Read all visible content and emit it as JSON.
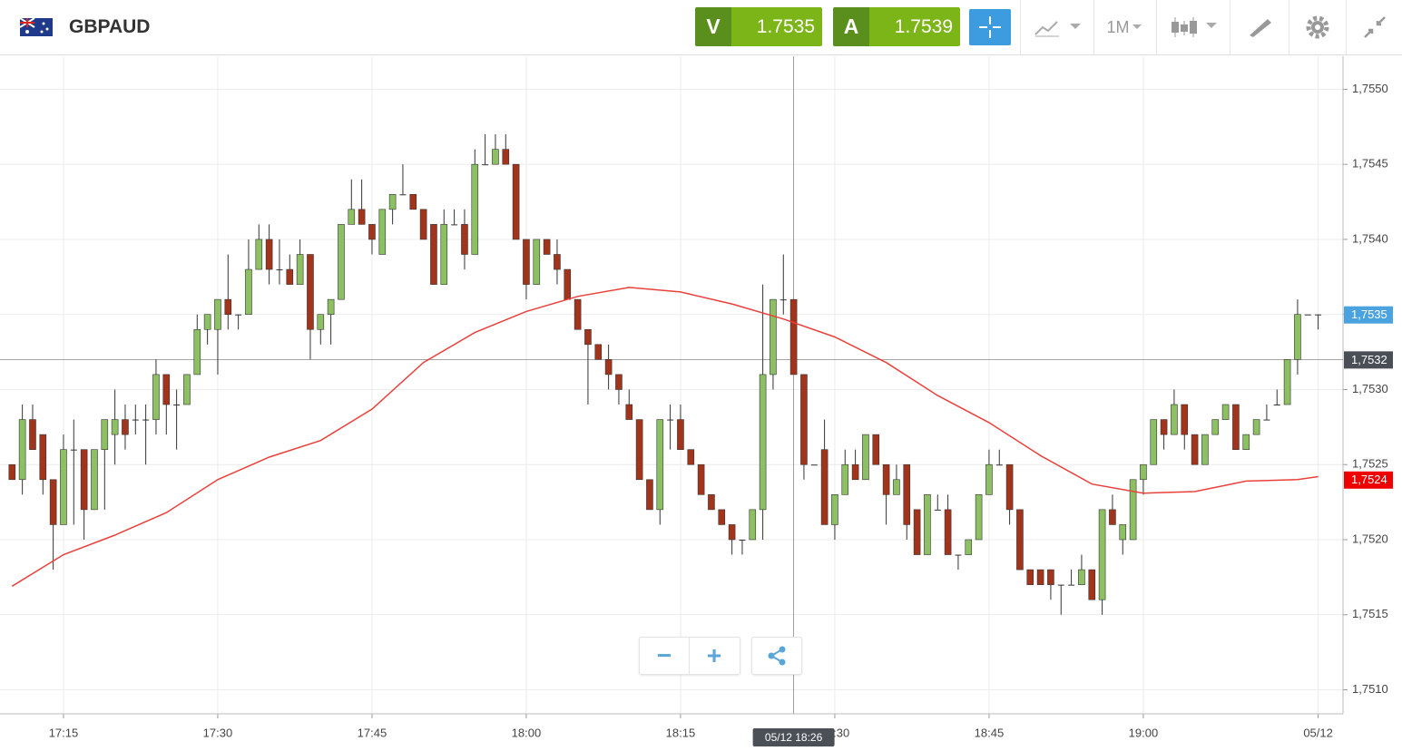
{
  "header": {
    "symbol": "GBPAUD",
    "sell": {
      "label": "V",
      "price": 1.7535
    },
    "buy": {
      "label": "A",
      "price": 1.7539
    },
    "timeframe": "1M"
  },
  "chart_data": {
    "type": "candlestick",
    "x": [
      "17:10",
      "17:11",
      "17:12",
      "17:13",
      "17:14",
      "17:15",
      "17:16",
      "17:17",
      "17:18",
      "17:19",
      "17:20",
      "17:21",
      "17:22",
      "17:23",
      "17:24",
      "17:25",
      "17:26",
      "17:27",
      "17:28",
      "17:29",
      "17:30",
      "17:31",
      "17:32",
      "17:33",
      "17:34",
      "17:35",
      "17:36",
      "17:37",
      "17:38",
      "17:39",
      "17:40",
      "17:41",
      "17:42",
      "17:43",
      "17:44",
      "17:45",
      "17:46",
      "17:47",
      "17:48",
      "17:49",
      "17:50",
      "17:51",
      "17:52",
      "17:53",
      "17:54",
      "17:55",
      "17:56",
      "17:57",
      "17:58",
      "17:59",
      "18:00",
      "18:01",
      "18:02",
      "18:03",
      "18:04",
      "18:05",
      "18:06",
      "18:07",
      "18:08",
      "18:09",
      "18:10",
      "18:11",
      "18:12",
      "18:13",
      "18:14",
      "18:15",
      "18:16",
      "18:17",
      "18:18",
      "18:19",
      "18:20",
      "18:21",
      "18:22",
      "18:23",
      "18:24",
      "18:25",
      "18:26",
      "18:27",
      "18:28",
      "18:29",
      "18:30",
      "18:31",
      "18:32",
      "18:33",
      "18:34",
      "18:35",
      "18:36",
      "18:37",
      "18:38",
      "18:39",
      "18:40",
      "18:41",
      "18:42",
      "18:43",
      "18:44",
      "18:45",
      "18:46",
      "18:47",
      "18:48",
      "18:49",
      "18:50",
      "18:51",
      "18:52",
      "18:53",
      "18:54",
      "18:55",
      "18:56",
      "18:57",
      "18:58",
      "18:59",
      "19:00",
      "19:01",
      "19:02",
      "19:03",
      "19:04",
      "19:05",
      "19:06",
      "19:07",
      "19:08",
      "19:09",
      "19:10",
      "19:11",
      "19:12",
      "19:13",
      "19:14",
      "19:15",
      "19:16",
      "19:17"
    ],
    "open": [
      1.7525,
      1.7524,
      1.7528,
      1.7527,
      1.7524,
      1.7521,
      1.7526,
      1.7526,
      1.7522,
      1.7526,
      1.7527,
      1.7528,
      1.7528,
      1.7528,
      1.7528,
      1.7531,
      1.7529,
      1.7529,
      1.7531,
      1.7534,
      1.7534,
      1.7536,
      1.7535,
      1.7535,
      1.7538,
      1.754,
      1.7538,
      1.7538,
      1.7537,
      1.7539,
      1.7534,
      1.7535,
      1.7536,
      1.7541,
      1.7542,
      1.7541,
      1.7539,
      1.7542,
      1.7543,
      1.7543,
      1.7542,
      1.7541,
      1.7537,
      1.7541,
      1.7541,
      1.7539,
      1.7545,
      1.7545,
      1.7546,
      1.7545,
      1.754,
      1.7537,
      1.754,
      1.7539,
      1.7538,
      1.7536,
      1.7534,
      1.7533,
      1.7532,
      1.7531,
      1.7529,
      1.7528,
      1.7524,
      1.7522,
      1.7528,
      1.7528,
      1.7526,
      1.7525,
      1.7523,
      1.7522,
      1.7521,
      1.752,
      1.752,
      1.7522,
      1.7531,
      1.7536,
      1.7536,
      1.7531,
      1.7525,
      1.7526,
      1.7521,
      1.7523,
      1.7525,
      1.7524,
      1.7527,
      1.7525,
      1.7523,
      1.7525,
      1.7522,
      1.7519,
      1.7522,
      1.7522,
      1.7519,
      1.7519,
      1.752,
      1.7523,
      1.7525,
      1.7525,
      1.7522,
      1.7518,
      1.7518,
      1.7518,
      1.7517,
      1.7517,
      1.7517,
      1.7518,
      1.7516,
      1.7522,
      1.752,
      1.752,
      1.7524,
      1.7525,
      1.7528,
      1.7527,
      1.7529,
      1.7527,
      1.7525,
      1.7527,
      1.7528,
      1.7529,
      1.7526,
      1.7527,
      1.7528,
      1.7529,
      1.7529,
      1.7532,
      1.7535,
      1.7535
    ],
    "high": [
      1.7525,
      1.7529,
      1.7529,
      1.7527,
      1.7524,
      1.7527,
      1.7528,
      1.7526,
      1.7526,
      1.7528,
      1.753,
      1.7529,
      1.7529,
      1.7529,
      1.7532,
      1.7531,
      1.753,
      1.7531,
      1.7535,
      1.7535,
      1.7536,
      1.7539,
      1.7535,
      1.754,
      1.7541,
      1.7541,
      1.754,
      1.7539,
      1.754,
      1.7539,
      1.7535,
      1.7536,
      1.7541,
      1.7544,
      1.7544,
      1.7541,
      1.7542,
      1.7543,
      1.7545,
      1.7543,
      1.7542,
      1.7541,
      1.7542,
      1.7542,
      1.7542,
      1.7546,
      1.7547,
      1.7547,
      1.7547,
      1.7545,
      1.754,
      1.754,
      1.754,
      1.754,
      1.7538,
      1.7536,
      1.7534,
      1.7533,
      1.7533,
      1.7531,
      1.753,
      1.7528,
      1.7524,
      1.7528,
      1.7529,
      1.7529,
      1.7526,
      1.7525,
      1.7523,
      1.7522,
      1.7521,
      1.752,
      1.7522,
      1.7537,
      1.7536,
      1.7539,
      1.7536,
      1.7531,
      1.7525,
      1.7528,
      1.7523,
      1.7526,
      1.7526,
      1.7527,
      1.7527,
      1.7525,
      1.7525,
      1.7525,
      1.7522,
      1.7523,
      1.7523,
      1.7523,
      1.7519,
      1.752,
      1.7523,
      1.7526,
      1.7526,
      1.7525,
      1.7522,
      1.7518,
      1.7518,
      1.7518,
      1.7517,
      1.7518,
      1.7519,
      1.7518,
      1.7522,
      1.7523,
      1.7521,
      1.7524,
      1.7525,
      1.7528,
      1.7528,
      1.753,
      1.7529,
      1.7527,
      1.7527,
      1.7528,
      1.7529,
      1.7529,
      1.7527,
      1.7528,
      1.7529,
      1.753,
      1.7532,
      1.7536,
      1.7535,
      1.7535
    ],
    "low": [
      1.7524,
      1.7523,
      1.7526,
      1.7523,
      1.7518,
      1.7521,
      1.7521,
      1.752,
      1.7522,
      1.7522,
      1.7525,
      1.7526,
      1.7527,
      1.7525,
      1.7527,
      1.7527,
      1.7526,
      1.7529,
      1.7531,
      1.7533,
      1.7531,
      1.7534,
      1.7534,
      1.7535,
      1.7538,
      1.7537,
      1.7537,
      1.7537,
      1.7537,
      1.7532,
      1.7533,
      1.7533,
      1.7536,
      1.7541,
      1.7541,
      1.7539,
      1.7539,
      1.7541,
      1.7543,
      1.7542,
      1.754,
      1.7537,
      1.7537,
      1.7541,
      1.7538,
      1.7539,
      1.7545,
      1.7545,
      1.7545,
      1.754,
      1.7536,
      1.7537,
      1.7539,
      1.7537,
      1.7536,
      1.7534,
      1.7529,
      1.7532,
      1.753,
      1.7529,
      1.7528,
      1.7524,
      1.7522,
      1.7521,
      1.7526,
      1.7526,
      1.7525,
      1.7523,
      1.7522,
      1.7521,
      1.7519,
      1.7519,
      1.752,
      1.752,
      1.753,
      1.7535,
      1.7531,
      1.7524,
      1.7525,
      1.7521,
      1.752,
      1.7523,
      1.7524,
      1.7524,
      1.7525,
      1.7521,
      1.7523,
      1.752,
      1.7519,
      1.7519,
      1.7522,
      1.7519,
      1.7518,
      1.7519,
      1.752,
      1.7523,
      1.7525,
      1.7521,
      1.7518,
      1.7517,
      1.7517,
      1.7516,
      1.7515,
      1.7517,
      1.7517,
      1.7516,
      1.7515,
      1.7521,
      1.7519,
      1.752,
      1.7523,
      1.7525,
      1.7526,
      1.7527,
      1.7526,
      1.7525,
      1.7525,
      1.7527,
      1.7528,
      1.7526,
      1.7526,
      1.7527,
      1.7528,
      1.7529,
      1.7529,
      1.7531,
      1.7535,
      1.7534
    ],
    "close": [
      1.7524,
      1.7528,
      1.7526,
      1.7524,
      1.7521,
      1.7526,
      1.7526,
      1.7522,
      1.7526,
      1.7528,
      1.7528,
      1.7527,
      1.7528,
      1.7528,
      1.7531,
      1.7529,
      1.7529,
      1.7531,
      1.7534,
      1.7535,
      1.7536,
      1.7535,
      1.7535,
      1.7538,
      1.754,
      1.7538,
      1.7538,
      1.7537,
      1.7539,
      1.7534,
      1.7535,
      1.7536,
      1.7541,
      1.7542,
      1.7541,
      1.754,
      1.7542,
      1.7543,
      1.7543,
      1.7542,
      1.754,
      1.7537,
      1.7541,
      1.7541,
      1.7539,
      1.7545,
      1.7545,
      1.7546,
      1.7545,
      1.754,
      1.7537,
      1.754,
      1.7539,
      1.7538,
      1.7536,
      1.7534,
      1.7533,
      1.7532,
      1.7531,
      1.753,
      1.7528,
      1.7524,
      1.7522,
      1.7528,
      1.7528,
      1.7526,
      1.7525,
      1.7523,
      1.7522,
      1.7521,
      1.752,
      1.752,
      1.7522,
      1.7531,
      1.7536,
      1.7536,
      1.7531,
      1.7525,
      1.7525,
      1.7521,
      1.7523,
      1.7525,
      1.7524,
      1.7527,
      1.7525,
      1.7523,
      1.7524,
      1.7521,
      1.7519,
      1.7523,
      1.7522,
      1.7519,
      1.7519,
      1.752,
      1.7523,
      1.7525,
      1.7525,
      1.7522,
      1.7518,
      1.7517,
      1.7517,
      1.7517,
      1.7517,
      1.7517,
      1.7518,
      1.7516,
      1.7522,
      1.7521,
      1.7521,
      1.7524,
      1.7525,
      1.7528,
      1.7527,
      1.7529,
      1.7527,
      1.7525,
      1.7527,
      1.7528,
      1.7529,
      1.7526,
      1.7527,
      1.7528,
      1.7528,
      1.7529,
      1.7532,
      1.7535,
      1.7535,
      1.7535
    ],
    "up_color": "#8cc063",
    "down_color": "#a3341c",
    "moving_average": {
      "color": "#e8413c",
      "x": [
        "17:10",
        "17:15",
        "17:20",
        "17:25",
        "17:30",
        "17:35",
        "17:40",
        "17:45",
        "17:50",
        "17:55",
        "18:00",
        "18:05",
        "18:10",
        "18:15",
        "18:20",
        "18:25",
        "18:30",
        "18:35",
        "18:40",
        "18:45",
        "18:50",
        "18:55",
        "19:00",
        "19:05",
        "19:10",
        "19:15",
        "19:17"
      ],
      "values": [
        1.75169,
        1.7519,
        1.75203,
        1.75218,
        1.7524,
        1.75255,
        1.75266,
        1.75287,
        1.75318,
        1.75338,
        1.75352,
        1.75362,
        1.75368,
        1.75365,
        1.75357,
        1.75347,
        1.75335,
        1.75318,
        1.75296,
        1.75278,
        1.75256,
        1.75237,
        1.75231,
        1.75232,
        1.75239,
        1.7524,
        1.75242
      ]
    },
    "ylim": [
      1.75084,
      1.75522
    ],
    "yticks": [
      {
        "value": 1.751,
        "label": "1,7510"
      },
      {
        "value": 1.7515,
        "label": "1,7515"
      },
      {
        "value": 1.752,
        "label": "1,7520"
      },
      {
        "value": 1.7525,
        "label": "1,7525"
      },
      {
        "value": 1.753,
        "label": "1,7530"
      },
      {
        "value": 1.7535,
        "label": "1,7535"
      },
      {
        "value": 1.754,
        "label": "1,7540"
      },
      {
        "value": 1.7545,
        "label": "1,7545"
      },
      {
        "value": 1.755,
        "label": "1,7550"
      }
    ],
    "xticks": [
      "17:15",
      "17:30",
      "17:45",
      "18:00",
      "18:15",
      "18:30",
      "18:45",
      "19:00",
      {
        "value": "19:17",
        "label": "05/12"
      }
    ],
    "grid": true,
    "price_tags": [
      {
        "value": 1.7535,
        "label": "1,7535",
        "color": "#4aa3df"
      },
      {
        "value": 1.7532,
        "label": "1,7532",
        "color": "#4a4f57",
        "line": true
      },
      {
        "value": 1.7524,
        "label": "1,7524",
        "color": "#ee0000"
      }
    ],
    "crosshair": {
      "x": "18:26",
      "label": "05/12 18:26"
    }
  }
}
